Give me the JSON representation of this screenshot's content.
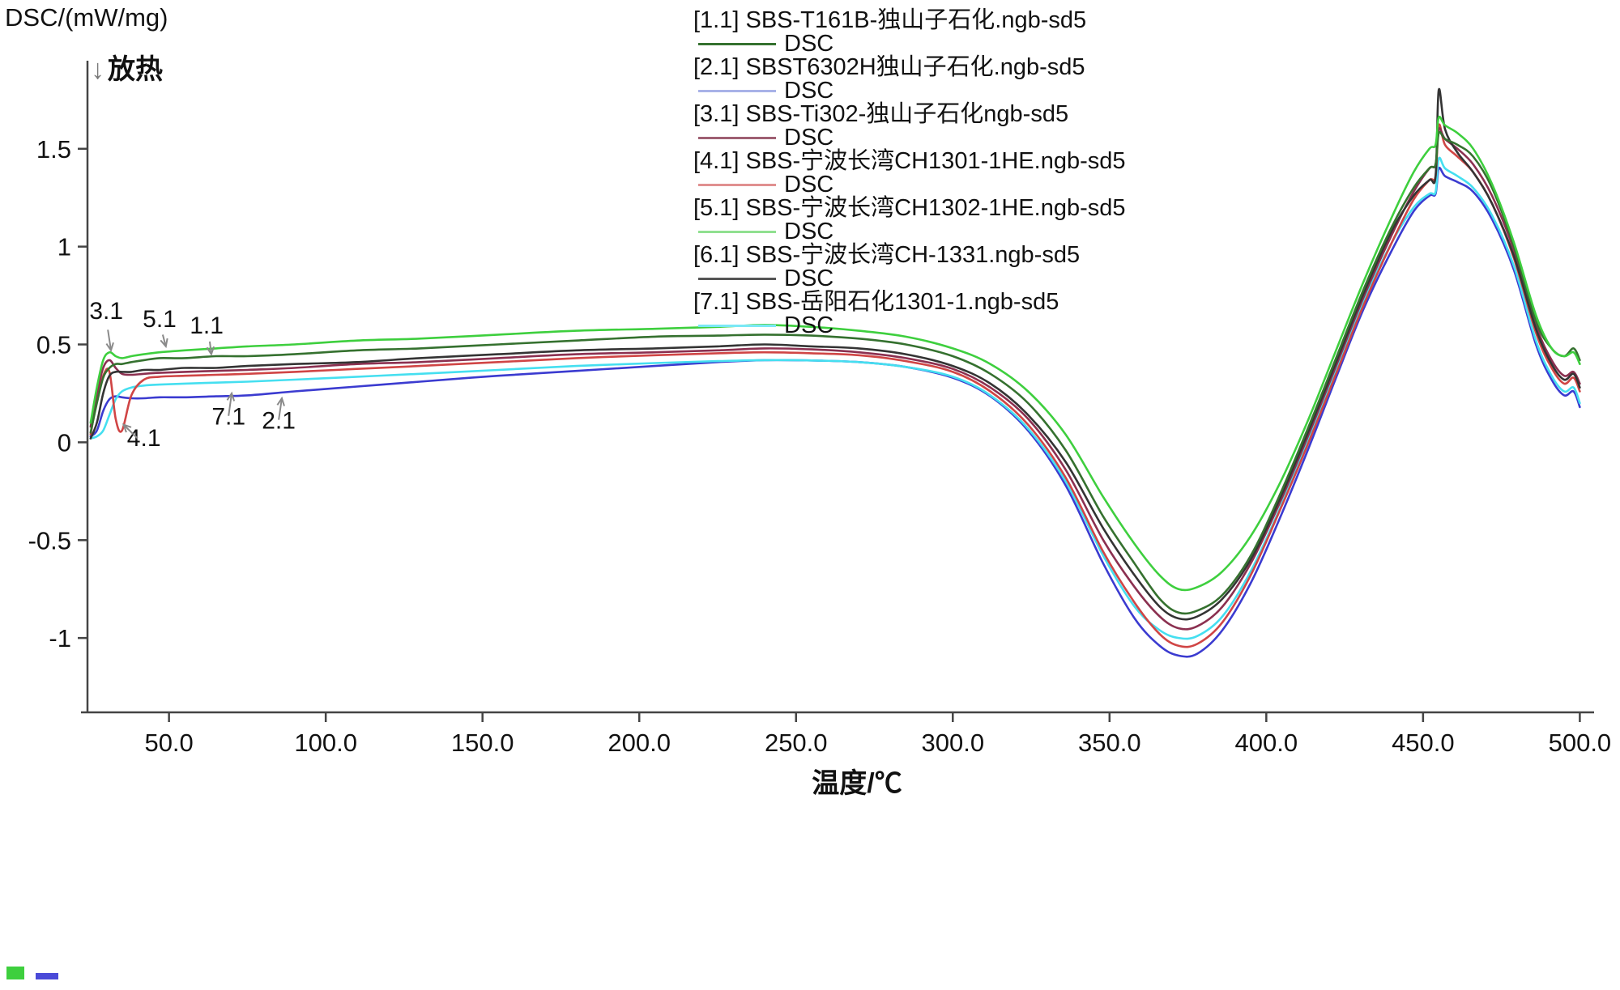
{
  "chart_data": {
    "type": "line",
    "title": "",
    "ylabel": "DSC/(mW/mg)",
    "xlabel": "温度/℃",
    "exo_arrow": "↓",
    "exo_label": "放热",
    "xlim": [
      24,
      503
    ],
    "ylim": [
      -1.38,
      1.95
    ],
    "x_ticks": [
      50,
      100,
      150,
      200,
      250,
      300,
      350,
      400,
      450,
      500
    ],
    "x_tick_labels": [
      "50.0",
      "100.0",
      "150.0",
      "200.0",
      "250.0",
      "300.0",
      "350.0",
      "400.0",
      "450.0",
      "500.0"
    ],
    "y_ticks": [
      1.5,
      1,
      0.5,
      0,
      -0.5,
      -1
    ],
    "y_tick_labels": [
      "1.5",
      "1",
      "0.5",
      "0",
      "-0.5",
      "-1"
    ],
    "grid": false,
    "legend_position": "top-right",
    "legend": [
      {
        "label": "[1.1] SBS-T161B-独山子石化.ngb-sd5",
        "sub": "DSC",
        "color": "#35712f"
      },
      {
        "label": "[2.1] SBST6302H独山子石化.ngb-sd5",
        "sub": "DSC",
        "color": "#a8b2e8"
      },
      {
        "label": "[3.1] SBS-Ti302-独山子石化ngb-sd5",
        "sub": "DSC",
        "color": "#9e5f72"
      },
      {
        "label": "[4.1] SBS-宁波长湾CH1301-1HE.ngb-sd5",
        "sub": "DSC",
        "color": "#e09090"
      },
      {
        "label": "[5.1] SBS-宁波长湾CH1302-1HE.ngb-sd5",
        "sub": "DSC",
        "color": "#90e090"
      },
      {
        "label": "[6.1] SBS-宁波长湾CH-1331.ngb-sd5",
        "sub": "DSC",
        "color": "#555555"
      },
      {
        "label": "[7.1] SBS-岳阳石化1301-1.ngb-sd5",
        "sub": "DSC",
        "color": "#7ae8f5"
      }
    ],
    "x": [
      25,
      27,
      29,
      31,
      33,
      35,
      38,
      42,
      47,
      55,
      65,
      75,
      90,
      110,
      130,
      155,
      180,
      205,
      225,
      240,
      255,
      270,
      285,
      300,
      312,
      324,
      336,
      348,
      358,
      366,
      372,
      378,
      386,
      395,
      404,
      413,
      422,
      431,
      440,
      447,
      452,
      454,
      455,
      457,
      461,
      466,
      472,
      479,
      486,
      491,
      495,
      498,
      500
    ],
    "series": [
      {
        "id": "2.1",
        "color": "#3b3bd0",
        "y": [
          0.03,
          0.06,
          0.16,
          0.22,
          0.235,
          0.23,
          0.225,
          0.225,
          0.23,
          0.23,
          0.235,
          0.24,
          0.26,
          0.285,
          0.31,
          0.34,
          0.365,
          0.39,
          0.41,
          0.42,
          0.418,
          0.41,
          0.385,
          0.33,
          0.235,
          0.06,
          -0.22,
          -0.62,
          -0.9,
          -1.04,
          -1.09,
          -1.08,
          -0.96,
          -0.72,
          -0.4,
          -0.05,
          0.32,
          0.68,
          0.98,
          1.18,
          1.26,
          1.27,
          1.4,
          1.36,
          1.33,
          1.28,
          1.14,
          0.88,
          0.5,
          0.32,
          0.24,
          0.26,
          0.18
        ]
      },
      {
        "id": "7.1",
        "color": "#45dff0",
        "y": [
          0.02,
          0.03,
          0.06,
          0.14,
          0.22,
          0.26,
          0.28,
          0.29,
          0.295,
          0.3,
          0.305,
          0.31,
          0.32,
          0.335,
          0.35,
          0.37,
          0.39,
          0.405,
          0.415,
          0.42,
          0.418,
          0.41,
          0.385,
          0.335,
          0.24,
          0.07,
          -0.2,
          -0.58,
          -0.84,
          -0.96,
          -1.0,
          -0.99,
          -0.89,
          -0.66,
          -0.35,
          0.0,
          0.36,
          0.72,
          1.02,
          1.2,
          1.27,
          1.28,
          1.45,
          1.4,
          1.36,
          1.3,
          1.16,
          0.9,
          0.52,
          0.34,
          0.26,
          0.28,
          0.2
        ]
      },
      {
        "id": "4.1",
        "color": "#d04545",
        "y": [
          0.04,
          0.22,
          0.34,
          0.36,
          0.12,
          0.06,
          0.24,
          0.32,
          0.335,
          0.34,
          0.345,
          0.35,
          0.36,
          0.375,
          0.39,
          0.41,
          0.43,
          0.445,
          0.455,
          0.46,
          0.455,
          0.445,
          0.415,
          0.36,
          0.26,
          0.09,
          -0.18,
          -0.56,
          -0.82,
          -0.98,
          -1.04,
          -1.03,
          -0.92,
          -0.68,
          -0.36,
          -0.02,
          0.34,
          0.7,
          1.02,
          1.24,
          1.34,
          1.36,
          1.62,
          1.52,
          1.46,
          1.38,
          1.22,
          0.94,
          0.56,
          0.38,
          0.3,
          0.33,
          0.26
        ]
      },
      {
        "id": "3.1",
        "color": "#8b3050",
        "y": [
          0.08,
          0.25,
          0.38,
          0.42,
          0.38,
          0.35,
          0.345,
          0.35,
          0.355,
          0.36,
          0.365,
          0.37,
          0.38,
          0.4,
          0.41,
          0.43,
          0.45,
          0.46,
          0.47,
          0.48,
          0.475,
          0.46,
          0.43,
          0.375,
          0.28,
          0.12,
          -0.14,
          -0.5,
          -0.74,
          -0.89,
          -0.95,
          -0.94,
          -0.84,
          -0.62,
          -0.32,
          0.02,
          0.38,
          0.74,
          1.06,
          1.28,
          1.4,
          1.42,
          1.6,
          1.55,
          1.5,
          1.42,
          1.26,
          0.98,
          0.6,
          0.42,
          0.34,
          0.36,
          0.3
        ]
      },
      {
        "id": "6.1",
        "color": "#343434",
        "y": [
          0.02,
          0.1,
          0.25,
          0.34,
          0.36,
          0.36,
          0.36,
          0.37,
          0.37,
          0.38,
          0.38,
          0.39,
          0.4,
          0.41,
          0.43,
          0.45,
          0.47,
          0.48,
          0.49,
          0.5,
          0.49,
          0.48,
          0.45,
          0.39,
          0.3,
          0.14,
          -0.1,
          -0.44,
          -0.68,
          -0.84,
          -0.9,
          -0.89,
          -0.8,
          -0.6,
          -0.3,
          0.04,
          0.4,
          0.76,
          1.08,
          1.26,
          1.34,
          1.36,
          1.8,
          1.6,
          1.48,
          1.38,
          1.22,
          0.95,
          0.58,
          0.4,
          0.32,
          0.35,
          0.28
        ]
      },
      {
        "id": "1.1",
        "color": "#35712f",
        "y": [
          0.05,
          0.2,
          0.33,
          0.38,
          0.4,
          0.4,
          0.41,
          0.42,
          0.43,
          0.43,
          0.44,
          0.44,
          0.45,
          0.47,
          0.48,
          0.5,
          0.52,
          0.54,
          0.545,
          0.55,
          0.545,
          0.53,
          0.5,
          0.44,
          0.35,
          0.2,
          -0.04,
          -0.38,
          -0.62,
          -0.8,
          -0.87,
          -0.86,
          -0.78,
          -0.58,
          -0.28,
          0.06,
          0.42,
          0.78,
          1.1,
          1.3,
          1.4,
          1.42,
          1.58,
          1.55,
          1.52,
          1.46,
          1.3,
          1.0,
          0.62,
          0.48,
          0.44,
          0.48,
          0.42
        ]
      },
      {
        "id": "5.1",
        "color": "#3ecf3e",
        "y": [
          0.1,
          0.28,
          0.42,
          0.46,
          0.44,
          0.43,
          0.44,
          0.45,
          0.46,
          0.47,
          0.48,
          0.49,
          0.5,
          0.52,
          0.53,
          0.55,
          0.57,
          0.58,
          0.59,
          0.6,
          0.59,
          0.57,
          0.54,
          0.48,
          0.4,
          0.26,
          0.04,
          -0.28,
          -0.52,
          -0.68,
          -0.75,
          -0.74,
          -0.66,
          -0.48,
          -0.22,
          0.1,
          0.46,
          0.82,
          1.15,
          1.38,
          1.5,
          1.52,
          1.66,
          1.62,
          1.58,
          1.5,
          1.32,
          1.02,
          0.65,
          0.48,
          0.44,
          0.46,
          0.4
        ]
      }
    ],
    "annotations": [
      {
        "text": "3.1",
        "label": [
          30,
          0.63
        ],
        "from": [
          30.5,
          0.575
        ],
        "to": [
          31.5,
          0.47
        ]
      },
      {
        "text": "5.1",
        "label": [
          47,
          0.59
        ],
        "from": [
          48,
          0.55
        ],
        "to": [
          49,
          0.49
        ]
      },
      {
        "text": "1.1",
        "label": [
          62,
          0.555
        ],
        "from": [
          63,
          0.515
        ],
        "to": [
          63.5,
          0.45
        ]
      },
      {
        "text": "4.1",
        "label": [
          42,
          -0.02
        ],
        "from": [
          40,
          0.02
        ],
        "to": [
          35.5,
          0.09
        ]
      },
      {
        "text": "7.1",
        "label": [
          69,
          0.09
        ],
        "from": [
          69,
          0.135
        ],
        "to": [
          70,
          0.25
        ]
      },
      {
        "text": "2.1",
        "label": [
          85,
          0.07
        ],
        "from": [
          85,
          0.115
        ],
        "to": [
          86,
          0.225
        ]
      }
    ]
  }
}
